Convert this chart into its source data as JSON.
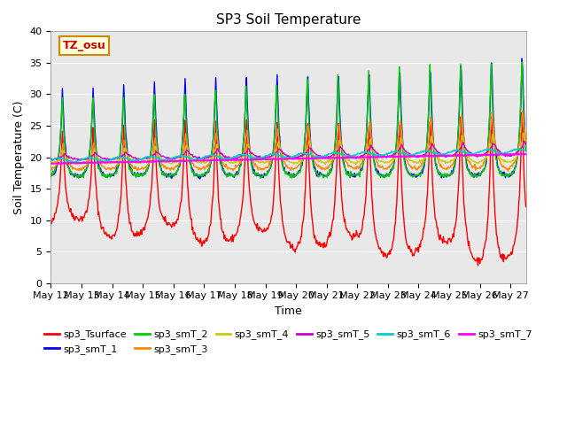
{
  "title": "SP3 Soil Temperature",
  "xlabel": "Time",
  "ylabel": "Soil Temperature (C)",
  "ylim": [
    0,
    40
  ],
  "annotation_text": "TZ_osu",
  "annotation_color": "#CC0000",
  "annotation_bg": "#FFFFDD",
  "annotation_border": "#CC8800",
  "bg_color": "#E8E8E8",
  "series_colors": {
    "sp3_Tsurface": "#FF0000",
    "sp3_smT_1": "#0000FF",
    "sp3_smT_2": "#00CC00",
    "sp3_smT_3": "#FF8800",
    "sp3_smT_4": "#CCCC00",
    "sp3_smT_5": "#CC00CC",
    "sp3_smT_6": "#00CCCC",
    "sp3_smT_7": "#FF00FF"
  },
  "x_tick_labels": [
    "May 12",
    "May 13",
    "May 14",
    "May 15",
    "May 16",
    "May 17",
    "May 18",
    "May 19",
    "May 20",
    "May 21",
    "May 22",
    "May 23",
    "May 24",
    "May 25",
    "May 26",
    "May 27"
  ],
  "n_days": 15.5,
  "n_points": 744,
  "figsize": [
    6.4,
    4.8
  ],
  "dpi": 100
}
